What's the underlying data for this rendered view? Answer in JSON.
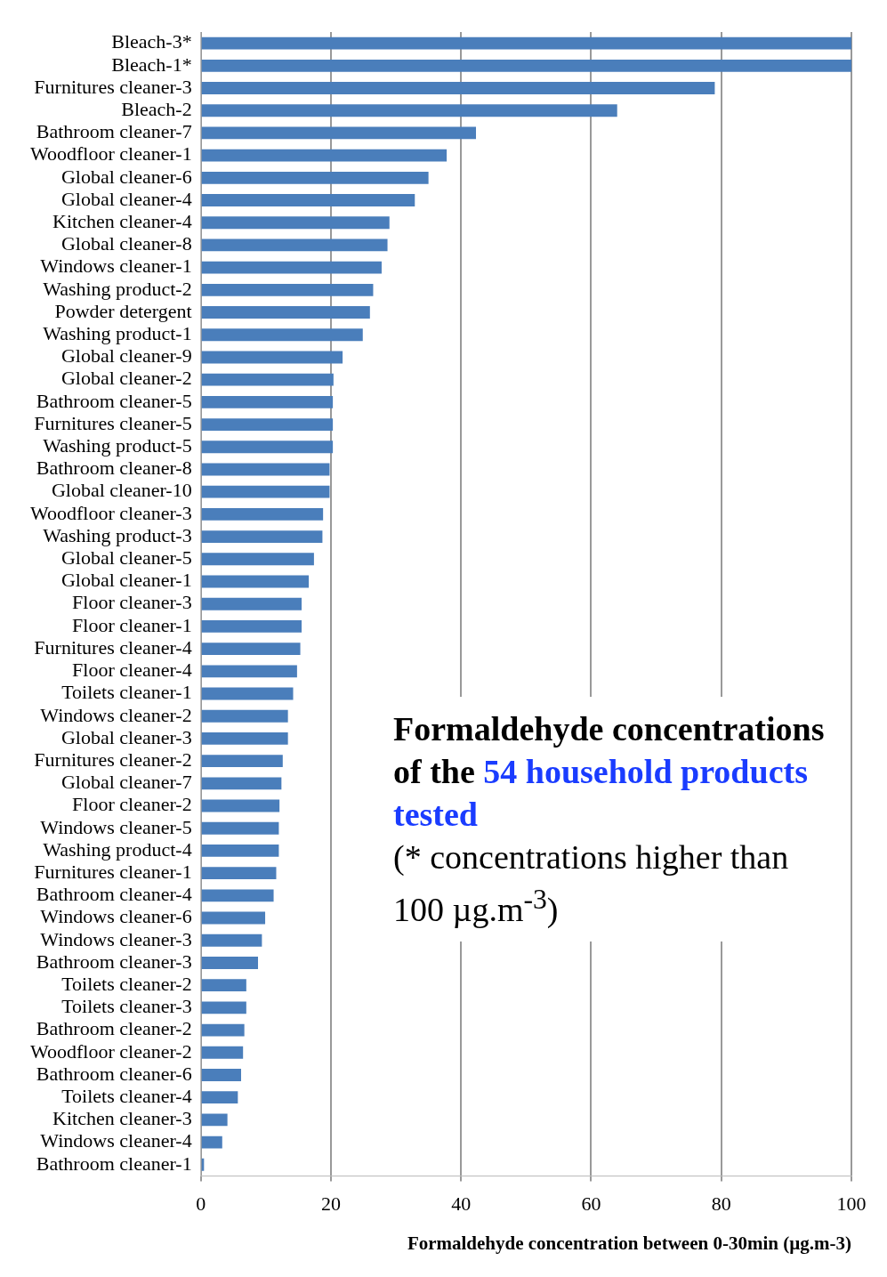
{
  "chart_data": {
    "type": "bar",
    "orientation": "horizontal",
    "color": "#4a7ebb",
    "categories": [
      "Bleach-3*",
      "Bleach-1*",
      "Furnitures cleaner-3",
      "Bleach-2",
      "Bathroom cleaner-7",
      "Woodfloor cleaner-1",
      "Global cleaner-6",
      "Global cleaner-4",
      "Kitchen cleaner-4",
      "Global cleaner-8",
      "Windows cleaner-1",
      "Washing product-2",
      "Powder detergent",
      "Washing product-1",
      "Global cleaner-9",
      "Global cleaner-2",
      "Bathroom cleaner-5",
      "Furnitures cleaner-5",
      "Washing product-5",
      "Bathroom cleaner-8",
      "Global cleaner-10",
      "Woodfloor cleaner-3",
      "Washing product-3",
      "Global cleaner-5",
      "Global cleaner-1",
      "Floor cleaner-3",
      "Floor cleaner-1",
      "Furnitures cleaner-4",
      "Floor cleaner-4",
      "Toilets cleaner-1",
      "Windows cleaner-2",
      "Global cleaner-3",
      "Furnitures cleaner-2",
      "Global cleaner-7",
      "Floor cleaner-2",
      "Windows cleaner-5",
      "Washing product-4",
      "Furnitures cleaner-1",
      "Bathroom cleaner-4",
      "Windows cleaner-6",
      "Windows cleaner-3",
      "Bathroom cleaner-3",
      "Toilets cleaner-2",
      "Toilets cleaner-3",
      "Bathroom cleaner-2",
      "Woodfloor cleaner-2",
      "Bathroom cleaner-6",
      "Toilets cleaner-4",
      "Kitchen cleaner-3",
      "Windows cleaner-4",
      "Bathroom cleaner-1"
    ],
    "values": [
      100,
      100,
      79,
      64,
      42.3,
      37.8,
      35,
      32.9,
      29,
      28.7,
      27.8,
      26.5,
      26,
      24.9,
      21.8,
      20.4,
      20.3,
      20.3,
      20.3,
      19.8,
      19.8,
      18.8,
      18.7,
      17.4,
      16.6,
      15.5,
      15.5,
      15.3,
      14.8,
      14.2,
      13.4,
      13.4,
      12.6,
      12.4,
      12.1,
      12,
      12,
      11.6,
      11.2,
      9.9,
      9.4,
      8.8,
      7,
      7,
      6.7,
      6.5,
      6.2,
      5.7,
      4.1,
      3.3,
      0.5
    ],
    "xlim": [
      0,
      100
    ],
    "xticks": [
      0,
      20,
      40,
      60,
      80,
      100
    ],
    "grid": "x",
    "xlabel": "Formaldehyde concentration between 0-30min (µg.m-3)",
    "annotations": [
      "Formaldehyde concentrations of the",
      "54 household products tested",
      "(* concentrations higher than 100 µg.m$^{-3}$)"
    ]
  }
}
